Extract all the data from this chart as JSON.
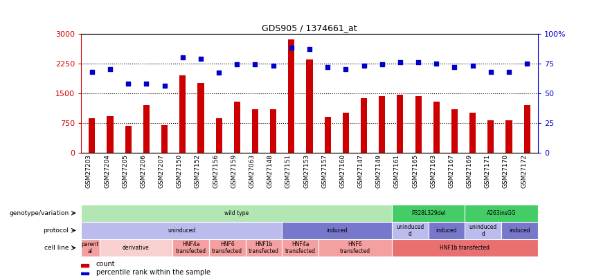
{
  "title": "GDS905 / 1374661_at",
  "samples": [
    "GSM27203",
    "GSM27204",
    "GSM27205",
    "GSM27206",
    "GSM27207",
    "GSM27150",
    "GSM27152",
    "GSM27156",
    "GSM27159",
    "GSM27063",
    "GSM27148",
    "GSM27151",
    "GSM27153",
    "GSM27157",
    "GSM27160",
    "GSM27147",
    "GSM27149",
    "GSM27161",
    "GSM27165",
    "GSM27163",
    "GSM27167",
    "GSM27169",
    "GSM27171",
    "GSM27170",
    "GSM27172"
  ],
  "counts": [
    870,
    920,
    680,
    1200,
    700,
    1950,
    1750,
    870,
    1280,
    1100,
    1100,
    2850,
    2350,
    900,
    1000,
    1380,
    1430,
    1460,
    1420,
    1280,
    1100,
    1000,
    820,
    820,
    1200
  ],
  "percentiles": [
    68,
    70,
    58,
    58,
    56,
    80,
    79,
    67,
    74,
    74,
    73,
    88,
    87,
    72,
    70,
    73,
    74,
    76,
    76,
    75,
    72,
    73,
    68,
    68,
    75
  ],
  "bar_color": "#cc0000",
  "scatter_color": "#0000cc",
  "ylim_left": [
    0,
    3000
  ],
  "ylim_right": [
    0,
    100
  ],
  "yticks_left": [
    0,
    750,
    1500,
    2250,
    3000
  ],
  "yticks_right": [
    0,
    25,
    50,
    75,
    100
  ],
  "dotted_lines": [
    750,
    1500,
    2250
  ],
  "bg_color": "#ffffff",
  "plot_bg_color": "#ffffff",
  "xtick_bg_color": "#d3d3d3",
  "genotype_row": {
    "label": "genotype/variation",
    "segments": [
      {
        "text": "wild type",
        "start": 0,
        "end": 17,
        "color": "#b2e6b2",
        "textcolor": "#000000"
      },
      {
        "text": "P328L329del",
        "start": 17,
        "end": 21,
        "color": "#44cc66",
        "textcolor": "#000000"
      },
      {
        "text": "A263insGG",
        "start": 21,
        "end": 25,
        "color": "#44cc66",
        "textcolor": "#000000"
      }
    ]
  },
  "protocol_row": {
    "label": "protocol",
    "segments": [
      {
        "text": "uninduced",
        "start": 0,
        "end": 11,
        "color": "#bbbbee",
        "textcolor": "#000000"
      },
      {
        "text": "induced",
        "start": 11,
        "end": 17,
        "color": "#7777cc",
        "textcolor": "#000000"
      },
      {
        "text": "uninduced\nd",
        "start": 17,
        "end": 19,
        "color": "#bbbbee",
        "textcolor": "#000000"
      },
      {
        "text": "induced",
        "start": 19,
        "end": 21,
        "color": "#7777cc",
        "textcolor": "#000000"
      },
      {
        "text": "uninduced\nd",
        "start": 21,
        "end": 23,
        "color": "#bbbbee",
        "textcolor": "#000000"
      },
      {
        "text": "induced",
        "start": 23,
        "end": 25,
        "color": "#7777cc",
        "textcolor": "#000000"
      }
    ]
  },
  "cellline_row": {
    "label": "cell line",
    "segments": [
      {
        "text": "parent\nal",
        "start": 0,
        "end": 1,
        "color": "#f4a0a0",
        "textcolor": "#000000"
      },
      {
        "text": "derivative",
        "start": 1,
        "end": 5,
        "color": "#f9d0d0",
        "textcolor": "#000000"
      },
      {
        "text": "HNF4a\ntransfected",
        "start": 5,
        "end": 7,
        "color": "#f4a0a0",
        "textcolor": "#000000"
      },
      {
        "text": "HNF6\ntransfected",
        "start": 7,
        "end": 9,
        "color": "#f4a0a0",
        "textcolor": "#000000"
      },
      {
        "text": "HNF1b\ntransfected",
        "start": 9,
        "end": 11,
        "color": "#f4a0a0",
        "textcolor": "#000000"
      },
      {
        "text": "HNF4a\ntransfected",
        "start": 11,
        "end": 13,
        "color": "#f4a0a0",
        "textcolor": "#000000"
      },
      {
        "text": "HNF6\ntransfected",
        "start": 13,
        "end": 17,
        "color": "#f4a0a0",
        "textcolor": "#000000"
      },
      {
        "text": "HNF1b transfected",
        "start": 17,
        "end": 25,
        "color": "#e87070",
        "textcolor": "#000000"
      }
    ]
  },
  "legend": [
    {
      "color": "#cc0000",
      "label": "count"
    },
    {
      "color": "#0000cc",
      "label": "percentile rank within the sample"
    }
  ],
  "left_label_color": "#cc0000",
  "right_label_color": "#0000cc",
  "tick_fontsize": 6.5,
  "bar_width": 0.35
}
